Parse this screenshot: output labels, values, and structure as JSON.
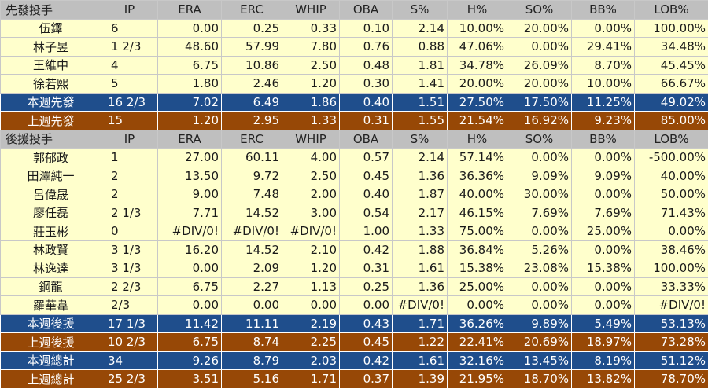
{
  "header_cols": [
    "IP",
    "ERA",
    "ERC",
    "WHIP",
    "OBA",
    "S%",
    "H%",
    "SO%",
    "BB%",
    "LOB%"
  ],
  "starters": {
    "title": "先發投手",
    "rows": [
      {
        "name": "伍鐸",
        "v": [
          "6",
          "0.00",
          "0.25",
          "0.33",
          "0.10",
          "2.14",
          "10.00%",
          "20.00%",
          "0.00%",
          "100.00%"
        ]
      },
      {
        "name": "林子昱",
        "v": [
          "1 2/3",
          "48.60",
          "57.99",
          "7.80",
          "0.76",
          "0.88",
          "47.06%",
          "0.00%",
          "29.41%",
          "34.48%"
        ]
      },
      {
        "name": "王維中",
        "v": [
          "4",
          "6.75",
          "10.86",
          "2.50",
          "0.48",
          "1.81",
          "34.78%",
          "26.09%",
          "8.70%",
          "45.45%"
        ]
      },
      {
        "name": "徐若熙",
        "v": [
          "5",
          "1.80",
          "2.46",
          "1.20",
          "0.30",
          "1.41",
          "20.00%",
          "20.00%",
          "10.00%",
          "66.67%"
        ]
      }
    ],
    "this_week": {
      "name": "本週先發",
      "v": [
        "16 2/3",
        "7.02",
        "6.49",
        "1.86",
        "0.40",
        "1.51",
        "27.50%",
        "17.50%",
        "11.25%",
        "49.02%"
      ]
    },
    "last_week": {
      "name": "上週先發",
      "v": [
        "15",
        "1.20",
        "2.95",
        "1.33",
        "0.31",
        "1.55",
        "21.54%",
        "16.92%",
        "9.23%",
        "85.00%"
      ]
    }
  },
  "relievers": {
    "title": "後援投手",
    "rows": [
      {
        "name": "郭郁政",
        "v": [
          "1",
          "27.00",
          "60.11",
          "4.00",
          "0.57",
          "2.14",
          "57.14%",
          "0.00%",
          "0.00%",
          "-500.00%"
        ]
      },
      {
        "name": "田澤純一",
        "v": [
          "2",
          "13.50",
          "9.72",
          "2.50",
          "0.45",
          "1.36",
          "36.36%",
          "9.09%",
          "9.09%",
          "40.00%"
        ]
      },
      {
        "name": "呂偉晟",
        "v": [
          "2",
          "9.00",
          "7.48",
          "2.00",
          "0.40",
          "1.87",
          "40.00%",
          "30.00%",
          "0.00%",
          "50.00%"
        ]
      },
      {
        "name": "廖任磊",
        "v": [
          "2 1/3",
          "7.71",
          "14.52",
          "3.00",
          "0.54",
          "2.17",
          "46.15%",
          "7.69%",
          "7.69%",
          "71.43%"
        ]
      },
      {
        "name": "莊玉彬",
        "v": [
          "0",
          "#DIV/0!",
          "#DIV/0!",
          "#DIV/0!",
          "1.00",
          "1.33",
          "75.00%",
          "0.00%",
          "25.00%",
          "0.00%"
        ]
      },
      {
        "name": "林政賢",
        "v": [
          "3 1/3",
          "16.20",
          "14.52",
          "2.10",
          "0.42",
          "1.88",
          "36.84%",
          "5.26%",
          "0.00%",
          "38.46%"
        ]
      },
      {
        "name": "林逸達",
        "v": [
          "3 1/3",
          "0.00",
          "2.09",
          "1.20",
          "0.31",
          "1.61",
          "15.38%",
          "23.08%",
          "15.38%",
          "100.00%"
        ]
      },
      {
        "name": "鋼龍",
        "v": [
          "2 2/3",
          "6.75",
          "2.27",
          "1.13",
          "0.25",
          "1.36",
          "25.00%",
          "0.00%",
          "0.00%",
          "33.33%"
        ]
      },
      {
        "name": "羅華韋",
        "v": [
          "2/3",
          "0.00",
          "0.00",
          "0.00",
          "0.00",
          "#DIV/0!",
          "0.00%",
          "0.00%",
          "0.00%",
          "#DIV/0!"
        ]
      }
    ],
    "this_week": {
      "name": "本週後援",
      "v": [
        "17 1/3",
        "11.42",
        "11.11",
        "2.19",
        "0.43",
        "1.71",
        "36.26%",
        "9.89%",
        "5.49%",
        "53.13%"
      ]
    },
    "last_week": {
      "name": "上週後援",
      "v": [
        "10 2/3",
        "6.75",
        "8.74",
        "2.25",
        "0.45",
        "1.22",
        "22.41%",
        "20.69%",
        "18.97%",
        "73.28%"
      ]
    }
  },
  "totals": {
    "this_week": {
      "name": "本週總計",
      "v": [
        "34",
        "9.26",
        "8.79",
        "2.03",
        "0.42",
        "1.61",
        "32.16%",
        "13.45%",
        "8.19%",
        "51.12%"
      ]
    },
    "last_week": {
      "name": "上週總計",
      "v": [
        "25 2/3",
        "3.51",
        "5.16",
        "1.71",
        "0.37",
        "1.39",
        "21.95%",
        "18.70%",
        "13.82%",
        "78.70%"
      ]
    }
  },
  "colors": {
    "data_row": "#ffffcc",
    "header_row": "#bfbfbf",
    "this_week": "#1f4e8c",
    "last_week": "#974806"
  }
}
